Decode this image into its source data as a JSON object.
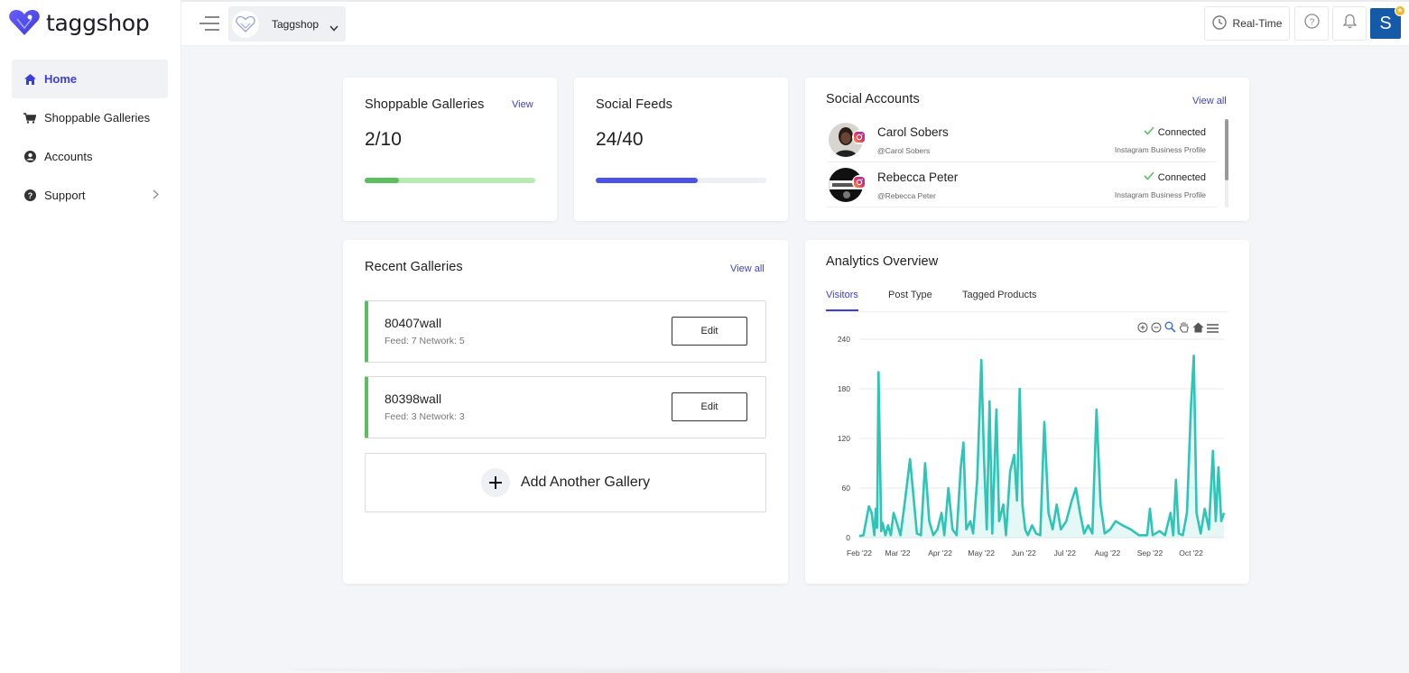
{
  "app": {
    "logo_text": "taggshop"
  },
  "sidebar": {
    "items": [
      {
        "label": "Home",
        "icon": "home-icon"
      },
      {
        "label": "Shoppable Galleries",
        "icon": "cart-icon"
      },
      {
        "label": "Accounts",
        "icon": "user-circle-icon"
      },
      {
        "label": "Support",
        "icon": "question-circle-icon"
      }
    ]
  },
  "topbar": {
    "workspace_name": "Taggshop",
    "realtime_label": "Real-Time",
    "avatar_letter": "S"
  },
  "shoppable": {
    "title": "Shoppable Galleries",
    "link": "View",
    "value": "2/10",
    "progress": 0.2
  },
  "feeds": {
    "title": "Social Feeds",
    "value": "24/40",
    "progress": 0.6
  },
  "social_accounts": {
    "title": "Social Accounts",
    "link": "View all",
    "items": [
      {
        "name": "Carol Sobers",
        "handle": "@Carol Sobers",
        "status": "Connected",
        "type": "Instagram Business Profile"
      },
      {
        "name": "Rebecca Peter",
        "handle": "@Rebecca Peter",
        "status": "Connected",
        "type": "Instagram Business Profile"
      }
    ]
  },
  "recent": {
    "title": "Recent Galleries",
    "link": "View all",
    "items": [
      {
        "name": "80407wall",
        "meta": "Feed: 7 Network: 5",
        "button": "Edit"
      },
      {
        "name": "80398wall",
        "meta": "Feed: 3 Network: 3",
        "button": "Edit"
      }
    ],
    "add_label": "Add Another Gallery"
  },
  "analytics": {
    "title": "Analytics Overview",
    "tabs": [
      "Visitors",
      "Post Type",
      "Tagged Products"
    ]
  },
  "colors": {
    "accent": "#3b3fd9",
    "chart_line": "#2ec4b6",
    "gallery_bar": "#5cbf5f"
  },
  "chart_data": {
    "type": "area",
    "title": "",
    "xlabel": "",
    "ylabel": "",
    "x_ticks": [
      "Feb '22",
      "Mar '22",
      "Apr '22",
      "May '22",
      "Jun '22",
      "Jul '22",
      "Aug '22",
      "Sep '22",
      "Oct '22"
    ],
    "y_ticks": [
      0,
      60,
      120,
      180,
      240
    ],
    "ylim": [
      0,
      240
    ],
    "xlim": [
      "2022-02-01",
      "2022-10-25"
    ],
    "series": [
      {
        "points": [
          [
            "2022-02-01",
            2
          ],
          [
            "2022-02-04",
            3
          ],
          [
            "2022-02-08",
            38
          ],
          [
            "2022-02-10",
            30
          ],
          [
            "2022-02-12",
            3
          ],
          [
            "2022-02-13",
            35
          ],
          [
            "2022-02-14",
            12
          ],
          [
            "2022-02-15",
            200
          ],
          [
            "2022-02-17",
            8
          ],
          [
            "2022-02-18",
            18
          ],
          [
            "2022-02-20",
            3
          ],
          [
            "2022-02-22",
            15
          ],
          [
            "2022-02-24",
            3
          ],
          [
            "2022-02-26",
            30
          ],
          [
            "2022-02-28",
            20
          ],
          [
            "2022-03-03",
            3
          ],
          [
            "2022-03-06",
            40
          ],
          [
            "2022-03-10",
            95
          ],
          [
            "2022-03-12",
            60
          ],
          [
            "2022-03-15",
            5
          ],
          [
            "2022-03-18",
            3
          ],
          [
            "2022-03-21",
            90
          ],
          [
            "2022-03-24",
            20
          ],
          [
            "2022-03-27",
            3
          ],
          [
            "2022-03-30",
            10
          ],
          [
            "2022-04-02",
            30
          ],
          [
            "2022-04-04",
            3
          ],
          [
            "2022-04-07",
            60
          ],
          [
            "2022-04-10",
            10
          ],
          [
            "2022-04-13",
            3
          ],
          [
            "2022-04-16",
            85
          ],
          [
            "2022-04-18",
            115
          ],
          [
            "2022-04-20",
            10
          ],
          [
            "2022-04-23",
            20
          ],
          [
            "2022-04-25",
            5
          ],
          [
            "2022-04-28",
            70
          ],
          [
            "2022-05-01",
            215
          ],
          [
            "2022-05-03",
            95
          ],
          [
            "2022-05-05",
            10
          ],
          [
            "2022-05-07",
            165
          ],
          [
            "2022-05-09",
            5
          ],
          [
            "2022-05-12",
            155
          ],
          [
            "2022-05-14",
            20
          ],
          [
            "2022-05-17",
            40
          ],
          [
            "2022-05-19",
            3
          ],
          [
            "2022-05-22",
            80
          ],
          [
            "2022-05-25",
            100
          ],
          [
            "2022-05-27",
            45
          ],
          [
            "2022-05-29",
            180
          ],
          [
            "2022-05-31",
            40
          ],
          [
            "2022-06-02",
            10
          ],
          [
            "2022-06-04",
            3
          ],
          [
            "2022-06-07",
            15
          ],
          [
            "2022-06-10",
            5
          ],
          [
            "2022-06-13",
            3
          ],
          [
            "2022-06-16",
            140
          ],
          [
            "2022-06-19",
            30
          ],
          [
            "2022-06-22",
            10
          ],
          [
            "2022-06-25",
            40
          ],
          [
            "2022-06-28",
            10
          ],
          [
            "2022-07-02",
            20
          ],
          [
            "2022-07-06",
            45
          ],
          [
            "2022-07-09",
            60
          ],
          [
            "2022-07-12",
            30
          ],
          [
            "2022-07-15",
            5
          ],
          [
            "2022-07-18",
            15
          ],
          [
            "2022-07-21",
            5
          ],
          [
            "2022-07-24",
            155
          ],
          [
            "2022-07-27",
            40
          ],
          [
            "2022-07-30",
            5
          ],
          [
            "2022-08-03",
            10
          ],
          [
            "2022-08-07",
            20
          ],
          [
            "2022-08-12",
            15
          ],
          [
            "2022-08-18",
            10
          ],
          [
            "2022-08-24",
            3
          ],
          [
            "2022-08-30",
            3
          ],
          [
            "2022-09-01",
            35
          ],
          [
            "2022-09-03",
            3
          ],
          [
            "2022-09-08",
            8
          ],
          [
            "2022-09-12",
            3
          ],
          [
            "2022-09-16",
            30
          ],
          [
            "2022-09-18",
            3
          ],
          [
            "2022-09-20",
            70
          ],
          [
            "2022-09-22",
            5
          ],
          [
            "2022-09-25",
            3
          ],
          [
            "2022-09-28",
            30
          ],
          [
            "2022-10-01",
            160
          ],
          [
            "2022-10-03",
            220
          ],
          [
            "2022-10-05",
            30
          ],
          [
            "2022-10-08",
            5
          ],
          [
            "2022-10-11",
            35
          ],
          [
            "2022-10-14",
            10
          ],
          [
            "2022-10-17",
            105
          ],
          [
            "2022-10-19",
            20
          ],
          [
            "2022-10-21",
            85
          ],
          [
            "2022-10-23",
            20
          ],
          [
            "2022-10-25",
            30
          ]
        ]
      }
    ]
  }
}
